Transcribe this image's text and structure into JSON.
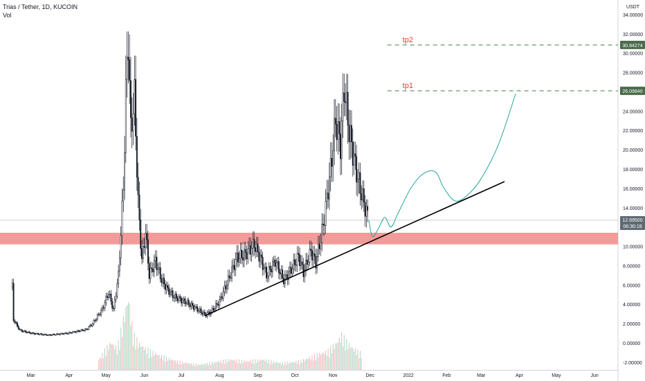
{
  "header": {
    "symbol": "Trias / Tether, 1D, KUCOIN",
    "indicator": "Vol"
  },
  "chart_data": {
    "type": "candlestick",
    "currency_label": "USDT",
    "ylim": [
      -2.8,
      35.5
    ],
    "y_ticks": [
      34,
      32,
      30,
      28,
      26,
      24,
      22,
      20,
      18,
      16,
      14,
      12,
      10,
      8,
      6,
      4,
      2,
      0,
      -2
    ],
    "y_tick_labels": [
      "34.00000",
      "32.00000",
      "30.00000",
      "28.00000",
      "26.00000",
      "24.00000",
      "22.00000",
      "20.00000",
      "18.00000",
      "16.00000",
      "14.00000",
      "12.00000",
      "10.00000",
      "8.00000",
      "6.00000",
      "4.00000",
      "2.00000",
      "0.00000",
      "-2.00000"
    ],
    "x_range": [
      "2021-02-04",
      "2022-06-20"
    ],
    "x_ticks": [
      {
        "date": "2021-03-01",
        "label": "Mar"
      },
      {
        "date": "2021-04-01",
        "label": "Apr"
      },
      {
        "date": "2021-05-01",
        "label": "May"
      },
      {
        "date": "2021-06-01",
        "label": "Jun"
      },
      {
        "date": "2021-07-01",
        "label": "Jul"
      },
      {
        "date": "2021-08-01",
        "label": "Aug"
      },
      {
        "date": "2021-09-01",
        "label": "Sep"
      },
      {
        "date": "2021-10-01",
        "label": "Oct"
      },
      {
        "date": "2021-11-01",
        "label": "Nov"
      },
      {
        "date": "2021-12-01",
        "label": "Dec"
      },
      {
        "date": "2022-01-01",
        "label": "2022"
      },
      {
        "date": "2022-02-01",
        "label": "Feb"
      },
      {
        "date": "2022-03-01",
        "label": "Mar"
      },
      {
        "date": "2022-04-01",
        "label": "Apr"
      },
      {
        "date": "2022-05-01",
        "label": "May"
      },
      {
        "date": "2022-06-01",
        "label": "Jun"
      }
    ],
    "price_path": [
      [
        "2021-02-14",
        5.8
      ],
      [
        "2021-02-15",
        2.4
      ],
      [
        "2021-02-20",
        1.3
      ],
      [
        "2021-03-01",
        1.0
      ],
      [
        "2021-03-15",
        0.8
      ],
      [
        "2021-03-31",
        1.0
      ],
      [
        "2021-04-15",
        1.4
      ],
      [
        "2021-04-20",
        2.0
      ],
      [
        "2021-04-28",
        3.5
      ],
      [
        "2021-05-03",
        5.2
      ],
      [
        "2021-05-07",
        3.4
      ],
      [
        "2021-05-11",
        7.0
      ],
      [
        "2021-05-15",
        16.0
      ],
      [
        "2021-05-17",
        26.0
      ],
      [
        "2021-05-19",
        31.5
      ],
      [
        "2021-05-21",
        22.0
      ],
      [
        "2021-05-24",
        25.5
      ],
      [
        "2021-05-27",
        14.5
      ],
      [
        "2021-05-30",
        8.5
      ],
      [
        "2021-06-02",
        11.5
      ],
      [
        "2021-06-05",
        7.0
      ],
      [
        "2021-06-10",
        8.5
      ],
      [
        "2021-06-15",
        6.5
      ],
      [
        "2021-06-20",
        5.5
      ],
      [
        "2021-06-25",
        4.8
      ],
      [
        "2021-07-05",
        4.2
      ],
      [
        "2021-07-15",
        3.4
      ],
      [
        "2021-07-20",
        2.9
      ],
      [
        "2021-07-25",
        3.2
      ],
      [
        "2021-08-01",
        4.3
      ],
      [
        "2021-08-08",
        6.5
      ],
      [
        "2021-08-15",
        8.8
      ],
      [
        "2021-08-22",
        9.2
      ],
      [
        "2021-08-29",
        10.2
      ],
      [
        "2021-09-04",
        8.5
      ],
      [
        "2021-09-08",
        7.0
      ],
      [
        "2021-09-15",
        8.5
      ],
      [
        "2021-09-22",
        6.5
      ],
      [
        "2021-09-29",
        7.8
      ],
      [
        "2021-10-04",
        9.0
      ],
      [
        "2021-10-08",
        7.3
      ],
      [
        "2021-10-14",
        9.5
      ],
      [
        "2021-10-18",
        8.3
      ],
      [
        "2021-10-22",
        10.8
      ],
      [
        "2021-10-25",
        13.0
      ],
      [
        "2021-10-30",
        18.0
      ],
      [
        "2021-11-03",
        23.0
      ],
      [
        "2021-11-07",
        20.5
      ],
      [
        "2021-11-10",
        26.5
      ],
      [
        "2021-11-14",
        22.0
      ],
      [
        "2021-11-18",
        19.0
      ],
      [
        "2021-11-22",
        16.5
      ],
      [
        "2021-11-26",
        14.5
      ],
      [
        "2021-11-30",
        12.7
      ]
    ],
    "projection_path": [
      [
        "2021-11-30",
        12.7
      ],
      [
        "2021-12-03",
        11.0
      ],
      [
        "2021-12-08",
        11.9
      ],
      [
        "2021-12-13",
        13.0
      ],
      [
        "2021-12-18",
        12.0
      ],
      [
        "2021-12-24",
        13.5
      ],
      [
        "2022-01-03",
        16.0
      ],
      [
        "2022-01-13",
        17.5
      ],
      [
        "2022-01-23",
        17.7
      ],
      [
        "2022-01-30",
        16.0
      ],
      [
        "2022-02-08",
        14.7
      ],
      [
        "2022-02-18",
        15.3
      ],
      [
        "2022-03-01",
        17.0
      ],
      [
        "2022-03-15",
        20.5
      ],
      [
        "2022-03-29",
        25.8
      ]
    ],
    "volume": [
      [
        "2021-04-25",
        0.6
      ],
      [
        "2021-05-05",
        1.6
      ],
      [
        "2021-05-10",
        1.2
      ],
      [
        "2021-05-16",
        3.2
      ],
      [
        "2021-05-19",
        4.2
      ],
      [
        "2021-05-23",
        2.0
      ],
      [
        "2021-05-28",
        1.5
      ],
      [
        "2021-06-05",
        1.1
      ],
      [
        "2021-06-15",
        0.8
      ],
      [
        "2021-06-28",
        0.5
      ],
      [
        "2021-07-15",
        0.3
      ],
      [
        "2021-08-10",
        0.6
      ],
      [
        "2021-08-22",
        0.5
      ],
      [
        "2021-09-05",
        0.6
      ],
      [
        "2021-09-20",
        0.4
      ],
      [
        "2021-10-05",
        0.5
      ],
      [
        "2021-10-20",
        0.9
      ],
      [
        "2021-10-28",
        1.1
      ],
      [
        "2021-11-03",
        1.5
      ],
      [
        "2021-11-08",
        2.0
      ],
      [
        "2021-11-12",
        1.6
      ],
      [
        "2021-11-18",
        1.2
      ],
      [
        "2021-11-25",
        0.9
      ]
    ],
    "support_zone": {
      "low": 10.2,
      "high": 11.4,
      "color": "#f08a87"
    },
    "trendline": [
      [
        "2021-07-20",
        2.8
      ],
      [
        "2022-03-20",
        16.7
      ]
    ],
    "last_price": {
      "value": 12.695,
      "label": "12.69500",
      "countdown": "06:30:18"
    },
    "targets": [
      {
        "name": "tp2",
        "value": 30.84274,
        "label": "30.84274",
        "start": "2021-12-15"
      },
      {
        "name": "tp1",
        "value": 26.0984,
        "label": "26.09840",
        "start": "2021-12-15"
      }
    ],
    "colors": {
      "candle": "#131722",
      "projection": "#26a69a",
      "trendline": "#000000",
      "target_text": "#e53935",
      "target_line": "#5b8a5b",
      "price_label_bg": "#4a6b4a",
      "last_price_bg": "#5f6a73",
      "volume_up": "#a5d6c7",
      "volume_down": "#f4b6b4"
    }
  }
}
